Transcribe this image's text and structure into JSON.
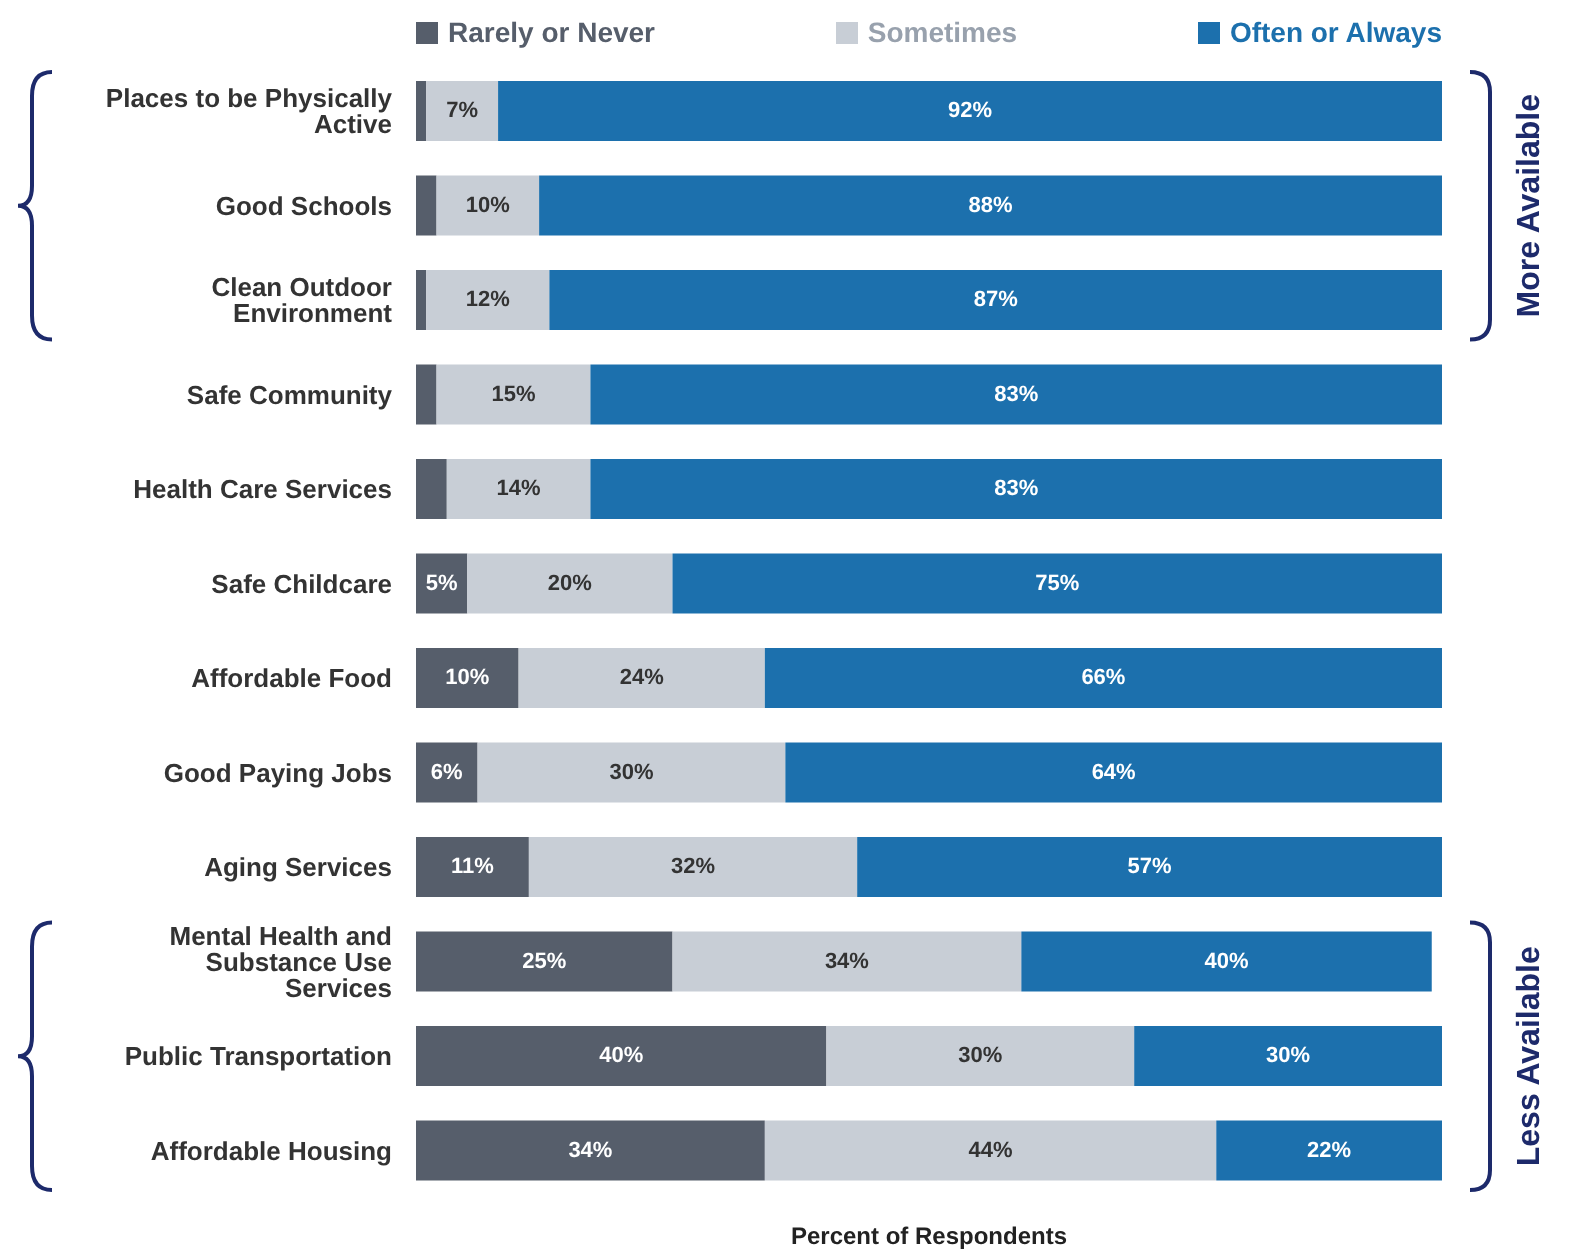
{
  "chart_data": {
    "type": "bar",
    "orientation": "horizontal",
    "stacked": true,
    "xlabel": "Percent of Respondents",
    "legend": "top",
    "categories": [
      "Places to be Physically Active",
      "Good Schools",
      "Clean Outdoor Environment",
      "Safe Community",
      "Health Care Services",
      "Safe Childcare",
      "Affordable Food",
      "Good Paying Jobs",
      "Aging Services",
      "Mental Health and Substance Use Services",
      "Public Transportation",
      "Affordable Housing"
    ],
    "series": [
      {
        "name": "Rarely or Never",
        "color": "#565e6b",
        "values": [
          1,
          2,
          1,
          2,
          3,
          5,
          10,
          6,
          11,
          25,
          40,
          34
        ],
        "value_labels": [
          null,
          null,
          null,
          null,
          null,
          "5%",
          "10%",
          "6%",
          "11%",
          "25%",
          "40%",
          "34%"
        ]
      },
      {
        "name": "Sometimes",
        "color": "#c8ced6",
        "values": [
          7,
          10,
          12,
          15,
          14,
          20,
          24,
          30,
          32,
          34,
          30,
          44
        ],
        "value_labels": [
          "7%",
          "10%",
          "12%",
          "15%",
          "14%",
          "20%",
          "24%",
          "30%",
          "32%",
          "34%",
          "30%",
          "44%"
        ]
      },
      {
        "name": "Often or Always",
        "color": "#1c70ad",
        "values": [
          92,
          88,
          87,
          83,
          83,
          75,
          66,
          64,
          57,
          40,
          30,
          22
        ],
        "value_labels": [
          "92%",
          "88%",
          "87%",
          "83%",
          "83%",
          "75%",
          "66%",
          "64%",
          "57%",
          "40%",
          "30%",
          "22%"
        ]
      }
    ],
    "annotations": [
      "More Available",
      "Less Available"
    ]
  }
}
